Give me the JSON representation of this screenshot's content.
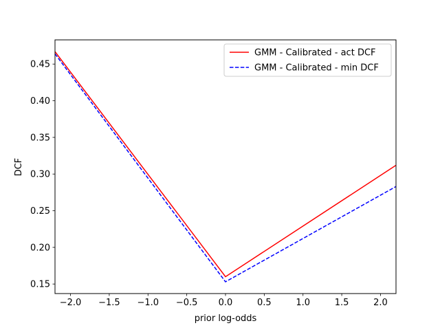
{
  "chart_data": {
    "type": "line",
    "xlabel": "prior log-odds",
    "ylabel": "DCF",
    "xlim": [
      -2.2,
      2.2
    ],
    "ylim": [
      0.137,
      0.483
    ],
    "xticks": [
      -2.0,
      -1.5,
      -1.0,
      -0.5,
      0.0,
      0.5,
      1.0,
      1.5,
      2.0
    ],
    "xtick_labels": [
      "−2.0",
      "−1.5",
      "−1.0",
      "−0.5",
      "0.0",
      "0.5",
      "1.0",
      "1.5",
      "2.0"
    ],
    "yticks": [
      0.15,
      0.2,
      0.25,
      0.3,
      0.35,
      0.4,
      0.45
    ],
    "ytick_labels": [
      "0.15",
      "0.20",
      "0.25",
      "0.30",
      "0.35",
      "0.40",
      "0.45"
    ],
    "grid": false,
    "legend_position": "top-right",
    "series": [
      {
        "name": "GMM - Calibrated - act DCF",
        "color": "#ff0000",
        "style": "solid",
        "x": [
          -2.2,
          0.0,
          2.2
        ],
        "y": [
          0.467,
          0.16,
          0.312
        ]
      },
      {
        "name": "GMM - Calibrated - min DCF",
        "color": "#0000ff",
        "style": "dashed",
        "x": [
          -2.2,
          0.0,
          2.2
        ],
        "y": [
          0.464,
          0.153,
          0.283
        ]
      }
    ]
  }
}
